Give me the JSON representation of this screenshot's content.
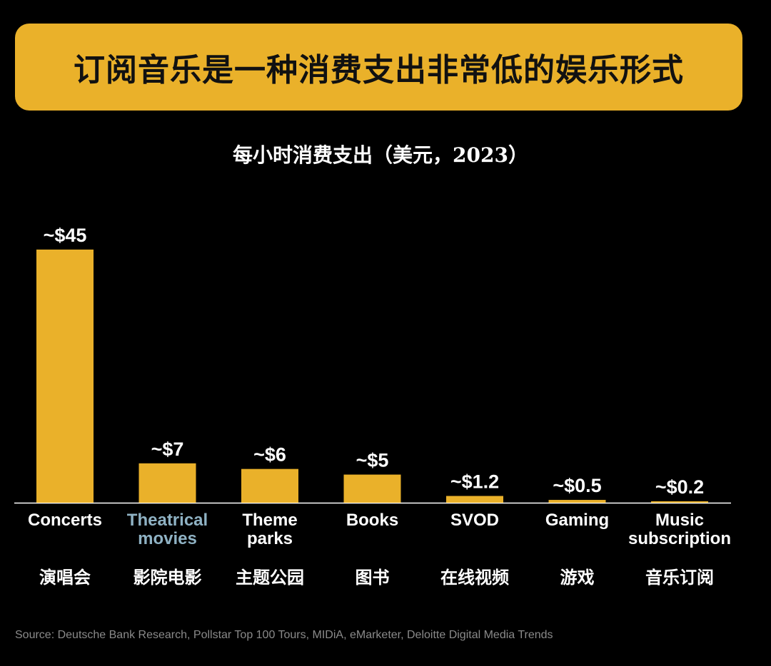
{
  "header": {
    "title": "订阅音乐是一种消费支出非常低的娱乐形式"
  },
  "chart_data": {
    "type": "bar",
    "title": "每小时消费支出（美元，2023）",
    "categories": [
      "Concerts",
      "Theatrical movies",
      "Theme parks",
      "Books",
      "SVOD",
      "Gaming",
      "Music subscription"
    ],
    "category_lines": [
      [
        "Concerts"
      ],
      [
        "Theatrical",
        "movies"
      ],
      [
        "Theme",
        "parks"
      ],
      [
        "Books"
      ],
      [
        "SVOD"
      ],
      [
        "Gaming"
      ],
      [
        "Music",
        "subscription"
      ]
    ],
    "categories_zh": [
      "演唱会",
      "影院电影",
      "主题公园",
      "图书",
      "在线视频",
      "游戏",
      "音乐订阅"
    ],
    "values": [
      45,
      7,
      6,
      5,
      1.2,
      0.5,
      0.2
    ],
    "value_labels": [
      "~$45",
      "~$7",
      "~$6",
      "~$5",
      "~$1.2",
      "~$0.5",
      "~$0.2"
    ],
    "highlighted_category": "Theatrical movies",
    "xlabel": "",
    "ylabel": "",
    "ylim": [
      0,
      45
    ],
    "grid": false,
    "colors": {
      "bar": "#EAB12A",
      "highlight_text": "#8FB2C4",
      "axis": "#ffffff"
    }
  },
  "footer": {
    "source": "Source: Deutsche Bank Research, Pollstar Top 100 Tours, MIDiA, eMarketer, Deloitte Digital Media Trends"
  }
}
